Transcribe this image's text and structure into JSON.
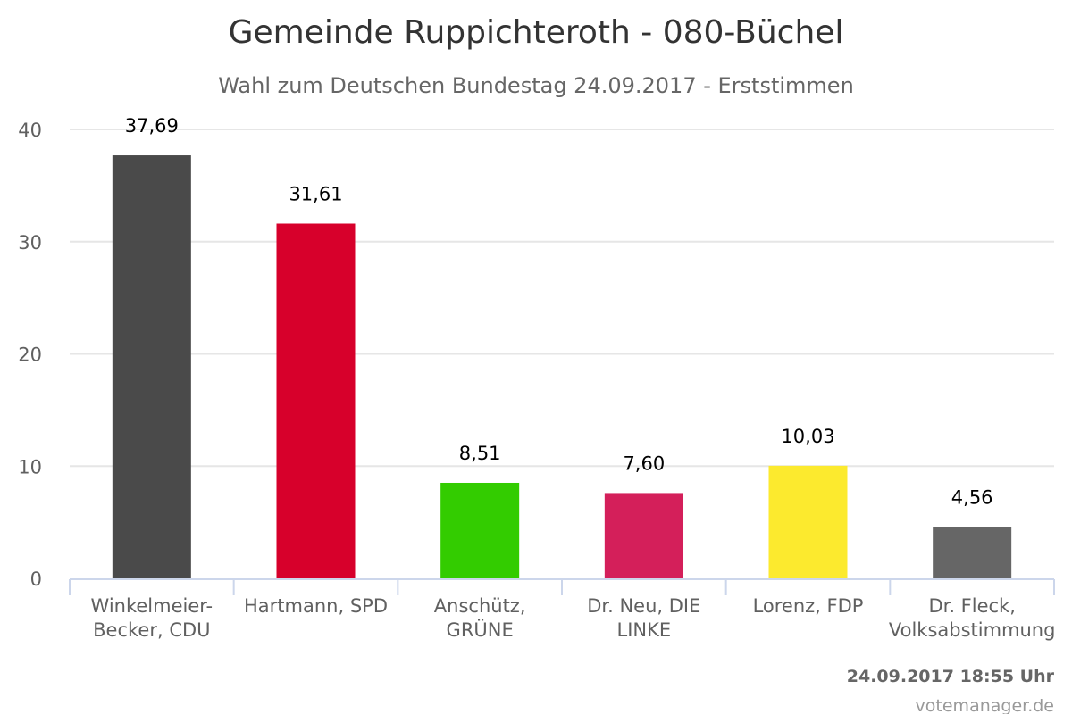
{
  "chart_data": {
    "type": "bar",
    "title": "Gemeinde Ruppichteroth - 080-Büchel",
    "subtitle": "Wahl zum Deutschen Bundestag 24.09.2017 - Erststimmen",
    "categories": [
      [
        "Winkelmeier-",
        "Becker, CDU"
      ],
      [
        "Hartmann, SPD"
      ],
      [
        "Anschütz,",
        "GRÜNE"
      ],
      [
        "Dr. Neu, DIE",
        "LINKE"
      ],
      [
        "Lorenz, FDP"
      ],
      [
        "Dr. Fleck,",
        "Volksabstimmung"
      ]
    ],
    "values": [
      37.69,
      31.61,
      8.51,
      7.6,
      10.03,
      4.56
    ],
    "data_labels": [
      "37,69",
      "31,61",
      "8,51",
      "7,60",
      "10,03",
      "4,56"
    ],
    "colors": [
      "#4a4a4a",
      "#d7002b",
      "#33cc00",
      "#d41f5a",
      "#fcea2e",
      "#666666"
    ],
    "ylim": [
      0,
      40
    ],
    "yticks": [
      0,
      10,
      20,
      30,
      40
    ],
    "grid": true,
    "legend": "none"
  },
  "footer": {
    "timestamp": "24.09.2017 18:55 Uhr",
    "credit": "votemanager.de"
  }
}
